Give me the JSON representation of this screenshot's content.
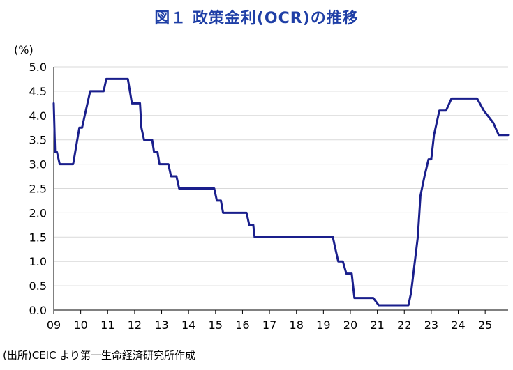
{
  "chart_data": {
    "type": "line",
    "title": "図１ 政策金利(OCR)の推移",
    "ylabel": "(%)",
    "source": "(出所)CEIC より第一生命経済研究所作成",
    "ylim": [
      0,
      5.0
    ],
    "xlim": [
      2009.0,
      2025.85
    ],
    "grid": "horizontal",
    "line_color": "#1a1f8c",
    "y_ticks": [
      "0.0",
      "0.5",
      "1.0",
      "1.5",
      "2.0",
      "2.5",
      "3.0",
      "3.5",
      "4.0",
      "4.5",
      "5.0"
    ],
    "x_ticks": [
      {
        "label": "09",
        "year": 2009
      },
      {
        "label": "10",
        "year": 2010
      },
      {
        "label": "11",
        "year": 2011
      },
      {
        "label": "12",
        "year": 2012
      },
      {
        "label": "13",
        "year": 2013
      },
      {
        "label": "14",
        "year": 2014
      },
      {
        "label": "15",
        "year": 2015
      },
      {
        "label": "16",
        "year": 2016
      },
      {
        "label": "17",
        "year": 2017
      },
      {
        "label": "18",
        "year": 2018
      },
      {
        "label": "19",
        "year": 2019
      },
      {
        "label": "20",
        "year": 2020
      },
      {
        "label": "21",
        "year": 2021
      },
      {
        "label": "22",
        "year": 2022
      },
      {
        "label": "23",
        "year": 2023
      },
      {
        "label": "24",
        "year": 2024
      },
      {
        "label": "25",
        "year": 2025
      }
    ],
    "series": [
      {
        "x": [
          2009.0,
          2009.05,
          2009.12,
          2009.22,
          2009.3,
          2009.72,
          2009.95,
          2010.05,
          2010.15,
          2010.25,
          2010.35,
          2010.45,
          2010.85,
          2010.95,
          2011.05,
          2011.75,
          2011.9,
          2012.2,
          2012.25,
          2012.35,
          2012.65,
          2012.72,
          2012.85,
          2012.92,
          2013.25,
          2013.35,
          2013.55,
          2013.65,
          2013.72,
          2013.95,
          2014.95,
          2015.05,
          2015.2,
          2015.28,
          2015.95,
          2016.15,
          2016.25,
          2016.4,
          2016.45,
          2019.35,
          2019.45,
          2019.55,
          2019.72,
          2019.85,
          2020.05,
          2020.15,
          2020.85,
          2021.05,
          2022.15,
          2022.25,
          2022.5,
          2022.6,
          2022.75,
          2022.9,
          2023.0,
          2023.1,
          2023.3,
          2023.55,
          2023.75,
          2024.55,
          2024.7,
          2024.95,
          2025.3,
          2025.5,
          2025.85
        ],
        "y": [
          4.25,
          3.25,
          3.25,
          3.0,
          3.0,
          3.0,
          3.75,
          3.75,
          4.0,
          4.25,
          4.5,
          4.5,
          4.5,
          4.75,
          4.75,
          4.75,
          4.25,
          4.25,
          3.75,
          3.5,
          3.5,
          3.25,
          3.25,
          3.0,
          3.0,
          2.75,
          2.75,
          2.5,
          2.5,
          2.5,
          2.5,
          2.25,
          2.25,
          2.0,
          2.0,
          2.0,
          1.75,
          1.75,
          1.5,
          1.5,
          1.25,
          1.0,
          1.0,
          0.75,
          0.75,
          0.25,
          0.25,
          0.1,
          0.1,
          0.35,
          1.5,
          2.35,
          2.75,
          3.1,
          3.1,
          3.6,
          4.1,
          4.1,
          4.35,
          4.35,
          4.35,
          4.1,
          3.85,
          3.6,
          3.6
        ]
      }
    ]
  }
}
